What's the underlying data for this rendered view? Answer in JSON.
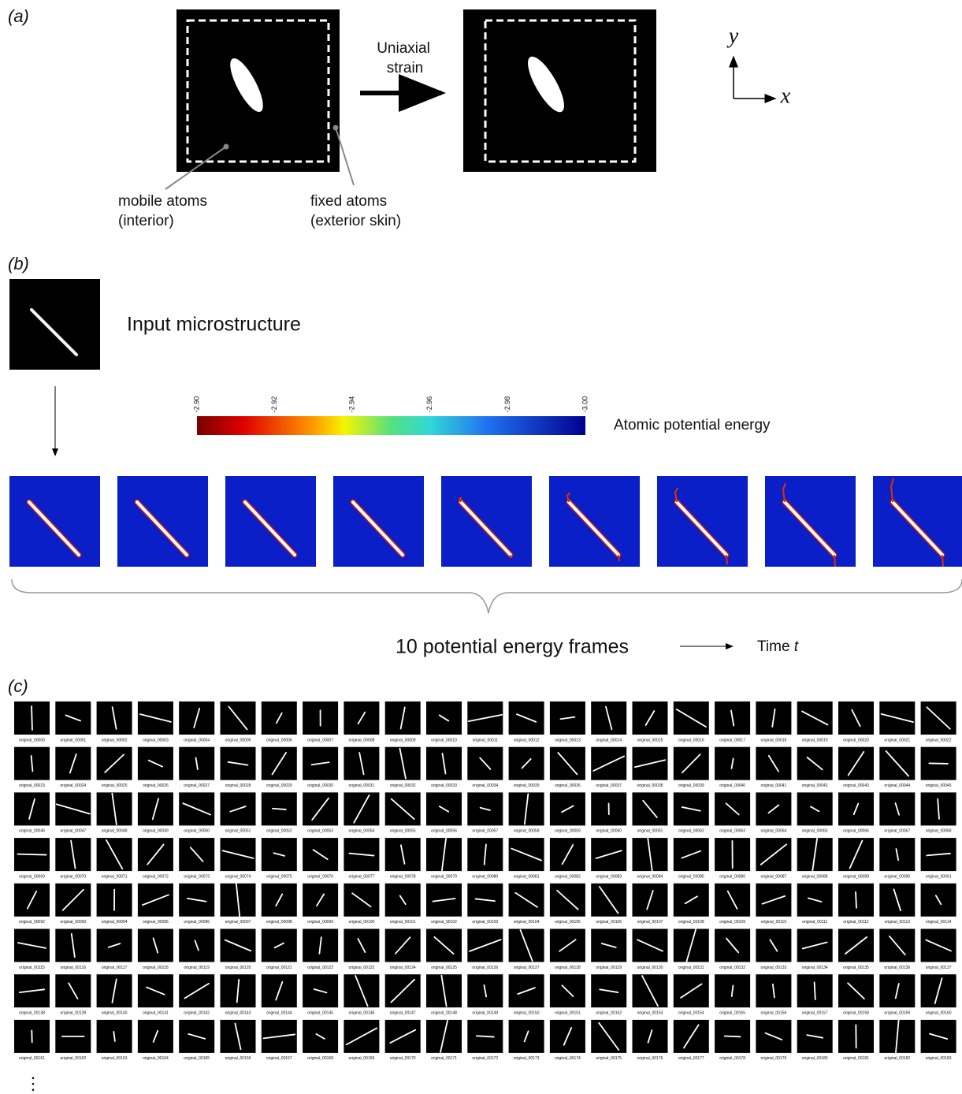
{
  "panel_a": {
    "label": "(a)",
    "arrow_text": [
      "Uniaxial",
      "strain"
    ],
    "mobile_label": [
      "mobile atoms",
      "(interior)"
    ],
    "fixed_label": [
      "fixed atoms",
      "(exterior skin)"
    ],
    "axis_y": "y",
    "axis_x": "x"
  },
  "panel_b": {
    "label": "(b)",
    "input_label": "Input microstructure",
    "colorbar_ticks": [
      "-2.90",
      "-2.92",
      "-2.94",
      "-2.96",
      "-2.98",
      "-3.00"
    ],
    "colorbar_label": "Atomic potential energy",
    "frames_label": "10 potential energy frames",
    "time_label": "Time",
    "time_symbol": "t"
  },
  "panel_c": {
    "label": "(c)",
    "more": "⋮",
    "thumbnails": [
      "original_00000",
      "original_00001",
      "original_00002",
      "original_00003",
      "original_00004",
      "original_00005",
      "original_00006",
      "original_00007",
      "original_00008",
      "original_00009",
      "original_00010",
      "original_00011",
      "original_00012",
      "original_00013",
      "original_00014",
      "original_00015",
      "original_00016",
      "original_00017",
      "original_00018",
      "original_00019",
      "original_00020",
      "original_00021",
      "original_00022",
      "original_00023",
      "original_00024",
      "original_00025",
      "original_00026",
      "original_00027",
      "original_00028",
      "original_00029",
      "original_00030",
      "original_00031",
      "original_00032",
      "original_00033",
      "original_00034",
      "original_00035",
      "original_00036",
      "original_00037",
      "original_00038",
      "original_00039",
      "original_00040",
      "original_00041",
      "original_00042",
      "original_00043",
      "original_00044",
      "original_00045",
      "original_00046",
      "original_00047",
      "original_00048",
      "original_00049",
      "original_00050",
      "original_00051",
      "original_00052",
      "original_00053",
      "original_00054",
      "original_00055",
      "original_00056",
      "original_00057",
      "original_00058",
      "original_00059",
      "original_00060",
      "original_00061",
      "original_00062",
      "original_00063",
      "original_00064",
      "original_00065",
      "original_00066",
      "original_00067",
      "original_00068",
      "original_00069",
      "original_00070",
      "original_00071",
      "original_00072",
      "original_00073",
      "original_00074",
      "original_00075",
      "original_00076",
      "original_00077",
      "original_00078",
      "original_00079",
      "original_00080",
      "original_00081",
      "original_00082",
      "original_00083",
      "original_00084",
      "original_00085",
      "original_00086",
      "original_00087",
      "original_00088",
      "original_00089",
      "original_00090",
      "original_00091",
      "original_00092",
      "original_00093",
      "original_00094",
      "original_00095",
      "original_00096",
      "original_00097",
      "original_00098",
      "original_00099",
      "original_00100",
      "original_00101",
      "original_00102",
      "original_00103",
      "original_00104",
      "original_00105",
      "original_00106",
      "original_00107",
      "original_00108",
      "original_00109",
      "original_00110",
      "original_00111",
      "original_00112",
      "original_00113",
      "original_00114",
      "original_00115",
      "original_00116",
      "original_00117",
      "original_00118",
      "original_00119",
      "original_00120",
      "original_00121",
      "original_00122",
      "original_00123",
      "original_00124",
      "original_00125",
      "original_00126",
      "original_00127",
      "original_00128",
      "original_00129",
      "original_00130",
      "original_00131",
      "original_00132",
      "original_00133",
      "original_00134",
      "original_00135",
      "original_00136",
      "original_00137",
      "original_00138",
      "original_00139",
      "original_00140",
      "original_00141",
      "original_00142",
      "original_00143",
      "original_00144",
      "original_00145",
      "original_00146",
      "original_00147",
      "original_00148",
      "original_00149",
      "original_00150",
      "original_00151",
      "original_00152",
      "original_00153",
      "original_00154",
      "original_00155",
      "original_00156",
      "original_00157",
      "original_00158",
      "original_00159",
      "original_00160",
      "original_00161",
      "original_00162",
      "original_00163",
      "original_00164",
      "original_00165",
      "original_00166",
      "original_00167",
      "original_00168",
      "original_00169",
      "original_00170",
      "original_00171",
      "original_00172",
      "original_00173",
      "original_00174",
      "original_00175",
      "original_00176",
      "original_00177",
      "original_00178",
      "original_00179",
      "original_00180",
      "original_00181",
      "original_00182",
      "original_00183"
    ]
  }
}
